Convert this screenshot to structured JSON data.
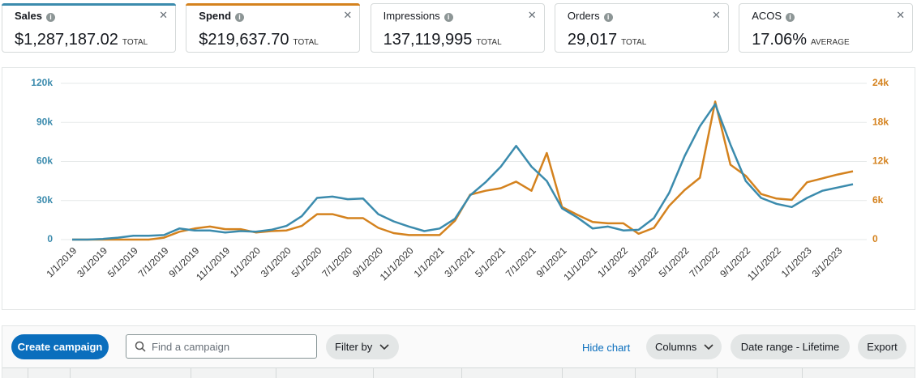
{
  "metrics": [
    {
      "label": "Sales",
      "value": "$1,287,187.02",
      "suffix": "TOTAL"
    },
    {
      "label": "Spend",
      "value": "$219,637.70",
      "suffix": "TOTAL"
    },
    {
      "label": "Impressions",
      "value": "137,119,995",
      "suffix": "TOTAL"
    },
    {
      "label": "Orders",
      "value": "29,017",
      "suffix": "TOTAL"
    },
    {
      "label": "ACOS",
      "value": "17.06%",
      "suffix": "AVERAGE"
    }
  ],
  "chart_data": {
    "type": "line",
    "categories": [
      "1/1/2019",
      null,
      "3/1/2019",
      null,
      "5/1/2019",
      null,
      "7/1/2019",
      null,
      "9/1/2019",
      null,
      "11/1/2019",
      null,
      "1/1/2020",
      null,
      "3/1/2020",
      null,
      "5/1/2020",
      null,
      "7/1/2020",
      null,
      "9/1/2020",
      null,
      "11/1/2020",
      null,
      "1/1/2021",
      null,
      "3/1/2021",
      null,
      "5/1/2021",
      null,
      "7/1/2021",
      null,
      "9/1/2021",
      null,
      "11/1/2021",
      null,
      "1/1/2022",
      null,
      "3/1/2022",
      null,
      "5/1/2022",
      null,
      "7/1/2022",
      null,
      "9/1/2022",
      null,
      "11/1/2022",
      null,
      "1/1/2023",
      null,
      "3/1/2023",
      null
    ],
    "series": [
      {
        "name": "Sales",
        "color": "#3b8bad",
        "values": [
          0,
          0,
          500,
          1500,
          3000,
          3000,
          3500,
          8500,
          7000,
          7000,
          5500,
          6500,
          6000,
          7500,
          10500,
          18000,
          32000,
          33000,
          31000,
          31500,
          19500,
          14000,
          10000,
          6500,
          8500,
          16000,
          34000,
          44000,
          56000,
          72000,
          56000,
          45000,
          24000,
          17000,
          8500,
          10000,
          7000,
          7500,
          16500,
          36000,
          64000,
          87000,
          104000,
          73000,
          45000,
          32000,
          27500,
          25000,
          32000,
          37500,
          40000,
          42500
        ]
      },
      {
        "name": "Spend",
        "color": "#d4821e",
        "axis": "y2",
        "values": [
          0,
          0,
          0,
          0,
          0,
          0,
          300,
          1200,
          1700,
          2000,
          1600,
          1600,
          1100,
          1300,
          1400,
          2100,
          3900,
          3900,
          3300,
          3300,
          1800,
          1000,
          700,
          700,
          700,
          2900,
          6900,
          7500,
          7900,
          8900,
          7500,
          13300,
          5000,
          3800,
          2700,
          2500,
          2500,
          900,
          1800,
          5200,
          7600,
          9500,
          21200,
          11500,
          9800,
          7000,
          6300,
          6100,
          8800,
          9400,
          10000,
          10500
        ]
      }
    ],
    "ylim": [
      0,
      120000
    ],
    "yticks": [
      0,
      {
        "value": 30000,
        "label": "30k"
      },
      {
        "value": 60000,
        "label": "60k"
      },
      {
        "value": 90000,
        "label": "90k"
      },
      {
        "value": 120000,
        "label": "120k"
      }
    ],
    "y2lim": [
      0,
      24000
    ],
    "y2ticks": [
      0,
      {
        "value": 6000,
        "label": "6k"
      },
      {
        "value": 12000,
        "label": "12k"
      },
      {
        "value": 18000,
        "label": "18k"
      },
      {
        "value": 24000,
        "label": "24k"
      }
    ],
    "grid": true
  },
  "toolbar": {
    "create": "Create campaign",
    "search": "Find a campaign",
    "filter": "Filter by",
    "hide": "Hide chart",
    "columns": "Columns",
    "date_range": "Date range - Lifetime",
    "export": "Export"
  }
}
